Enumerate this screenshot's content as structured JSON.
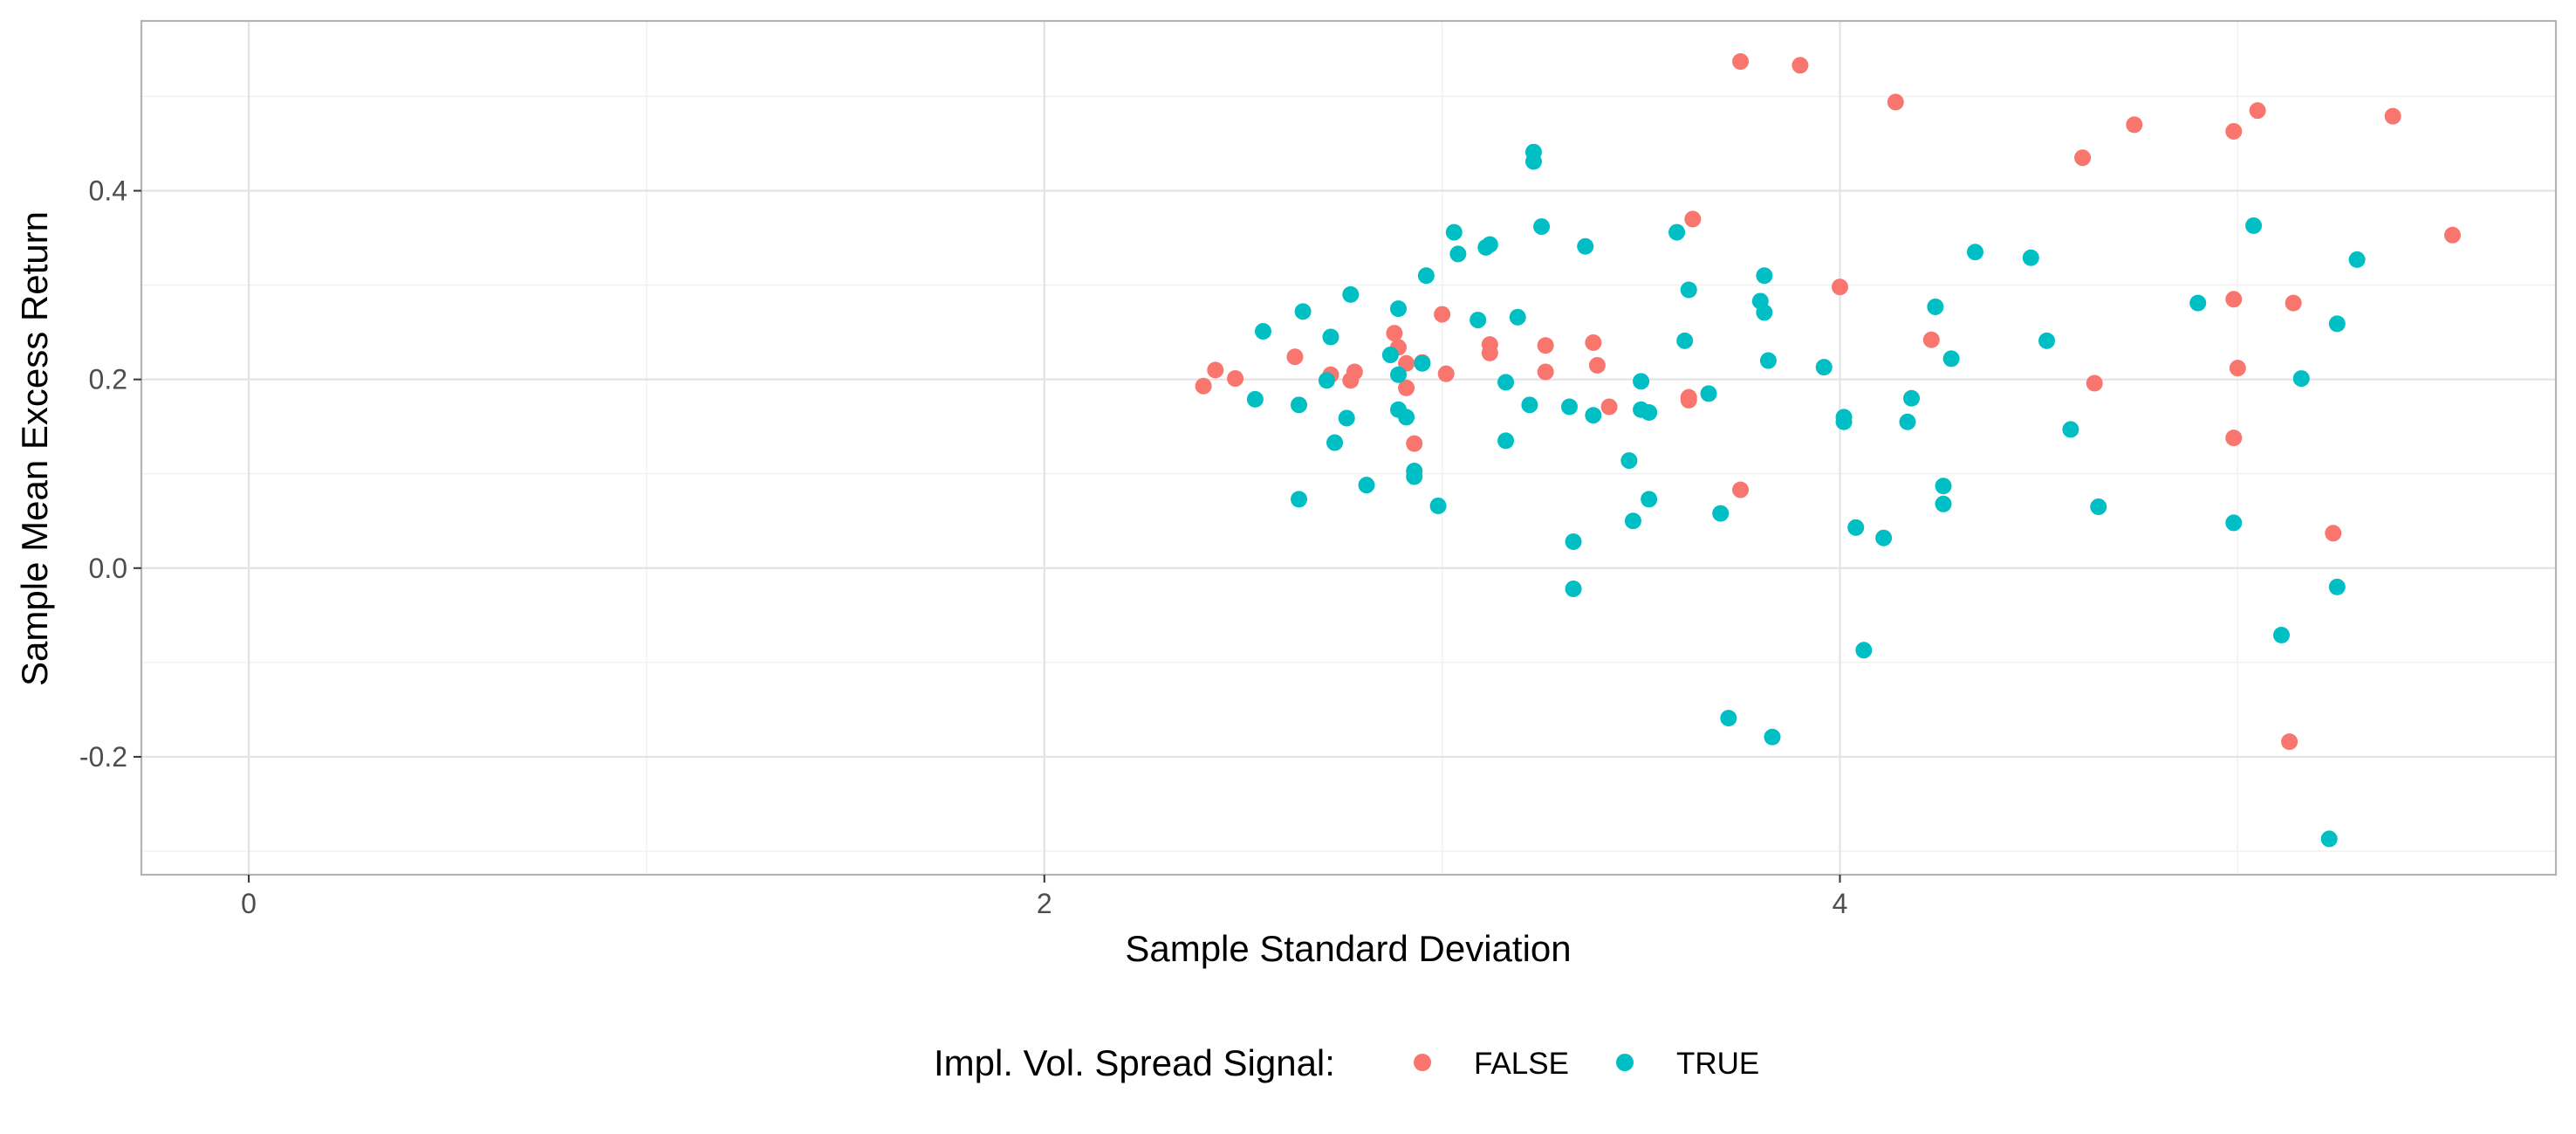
{
  "chart_data": {
    "type": "scatter",
    "title": "",
    "xlabel": "Sample Standard Deviation",
    "ylabel": "Sample Mean Excess Return",
    "xlim": [
      -0.27,
      5.8
    ],
    "ylim": [
      -0.325,
      0.58
    ],
    "x_ticks": [
      0,
      2,
      4
    ],
    "x_tick_labels": [
      "0",
      "2",
      "4"
    ],
    "y_ticks": [
      -0.2,
      0.0,
      0.2,
      0.4
    ],
    "y_tick_labels": [
      "-0.2",
      "0.0",
      "0.2",
      "0.4"
    ],
    "x_minor_ticks": [
      1,
      3,
      5
    ],
    "y_minor_ticks": [
      -0.3,
      -0.1,
      0.1,
      0.3,
      0.5
    ],
    "grid": true,
    "legend": {
      "title": "Impl. Vol. Spread Signal:",
      "position": "bottom",
      "entries": [
        "FALSE",
        "TRUE"
      ]
    },
    "series": [
      {
        "name": "FALSE",
        "color": "#F8766D",
        "points": [
          [
            2.4,
            0.193
          ],
          [
            2.43,
            0.21
          ],
          [
            2.48,
            0.201
          ],
          [
            2.63,
            0.224
          ],
          [
            2.72,
            0.205
          ],
          [
            2.77,
            0.199
          ],
          [
            2.78,
            0.208
          ],
          [
            2.88,
            0.249
          ],
          [
            2.89,
            0.234
          ],
          [
            2.91,
            0.191
          ],
          [
            2.91,
            0.217
          ],
          [
            2.93,
            0.132
          ],
          [
            2.95,
            0.218
          ],
          [
            3.0,
            0.269
          ],
          [
            3.01,
            0.206
          ],
          [
            3.12,
            0.228
          ],
          [
            3.12,
            0.237
          ],
          [
            3.26,
            0.236
          ],
          [
            3.26,
            0.208
          ],
          [
            3.38,
            0.239
          ],
          [
            3.39,
            0.215
          ],
          [
            3.42,
            0.171
          ],
          [
            3.62,
            0.181
          ],
          [
            3.62,
            0.178
          ],
          [
            3.63,
            0.37
          ],
          [
            3.75,
            0.537
          ],
          [
            3.75,
            0.083
          ],
          [
            3.9,
            0.533
          ],
          [
            4.0,
            0.298
          ],
          [
            4.14,
            0.494
          ],
          [
            4.23,
            0.242
          ],
          [
            4.61,
            0.435
          ],
          [
            4.64,
            0.196
          ],
          [
            4.74,
            0.47
          ],
          [
            4.99,
            0.285
          ],
          [
            4.99,
            0.463
          ],
          [
            4.99,
            0.138
          ],
          [
            5.0,
            0.212
          ],
          [
            5.05,
            0.485
          ],
          [
            5.13,
            -0.184
          ],
          [
            5.14,
            0.281
          ],
          [
            5.24,
            0.037
          ],
          [
            5.39,
            0.479
          ],
          [
            5.54,
            0.353
          ]
        ]
      },
      {
        "name": "TRUE",
        "color": "#00BFC4",
        "points": [
          [
            2.53,
            0.179
          ],
          [
            2.55,
            0.251
          ],
          [
            2.64,
            0.073
          ],
          [
            2.64,
            0.173
          ],
          [
            2.65,
            0.272
          ],
          [
            2.71,
            0.199
          ],
          [
            2.72,
            0.245
          ],
          [
            2.73,
            0.133
          ],
          [
            2.76,
            0.159
          ],
          [
            2.77,
            0.29
          ],
          [
            2.81,
            0.088
          ],
          [
            2.87,
            0.226
          ],
          [
            2.89,
            0.275
          ],
          [
            2.89,
            0.205
          ],
          [
            2.89,
            0.168
          ],
          [
            2.91,
            0.16
          ],
          [
            2.93,
            0.103
          ],
          [
            2.93,
            0.097
          ],
          [
            2.95,
            0.217
          ],
          [
            2.96,
            0.31
          ],
          [
            2.99,
            0.066
          ],
          [
            3.03,
            0.356
          ],
          [
            3.04,
            0.333
          ],
          [
            3.09,
            0.263
          ],
          [
            3.11,
            0.34
          ],
          [
            3.12,
            0.343
          ],
          [
            3.16,
            0.197
          ],
          [
            3.16,
            0.135
          ],
          [
            3.19,
            0.266
          ],
          [
            3.22,
            0.173
          ],
          [
            3.23,
            0.441
          ],
          [
            3.23,
            0.431
          ],
          [
            3.25,
            0.362
          ],
          [
            3.32,
            0.171
          ],
          [
            3.33,
            0.028
          ],
          [
            3.33,
            -0.022
          ],
          [
            3.36,
            0.341
          ],
          [
            3.38,
            0.162
          ],
          [
            3.47,
            0.114
          ],
          [
            3.48,
            0.05
          ],
          [
            3.5,
            0.198
          ],
          [
            3.5,
            0.168
          ],
          [
            3.52,
            0.073
          ],
          [
            3.52,
            0.165
          ],
          [
            3.59,
            0.356
          ],
          [
            3.61,
            0.241
          ],
          [
            3.62,
            0.295
          ],
          [
            3.67,
            0.185
          ],
          [
            3.7,
            0.058
          ],
          [
            3.72,
            -0.159
          ],
          [
            3.8,
            0.283
          ],
          [
            3.81,
            0.31
          ],
          [
            3.81,
            0.271
          ],
          [
            3.82,
            0.22
          ],
          [
            3.83,
            -0.179
          ],
          [
            3.96,
            0.213
          ],
          [
            4.01,
            0.16
          ],
          [
            4.01,
            0.155
          ],
          [
            4.04,
            0.043
          ],
          [
            4.06,
            -0.087
          ],
          [
            4.11,
            0.032
          ],
          [
            4.17,
            0.155
          ],
          [
            4.18,
            0.18
          ],
          [
            4.24,
            0.277
          ],
          [
            4.26,
            0.068
          ],
          [
            4.26,
            0.087
          ],
          [
            4.28,
            0.222
          ],
          [
            4.34,
            0.335
          ],
          [
            4.48,
            0.329
          ],
          [
            4.52,
            0.241
          ],
          [
            4.58,
            0.147
          ],
          [
            4.65,
            0.065
          ],
          [
            4.9,
            0.281
          ],
          [
            4.99,
            0.048
          ],
          [
            5.04,
            0.363
          ],
          [
            5.11,
            -0.071
          ],
          [
            5.16,
            0.201
          ],
          [
            5.25,
            -0.02
          ],
          [
            5.25,
            0.259
          ],
          [
            5.3,
            0.327
          ],
          [
            5.23,
            -0.287
          ]
        ]
      }
    ]
  }
}
